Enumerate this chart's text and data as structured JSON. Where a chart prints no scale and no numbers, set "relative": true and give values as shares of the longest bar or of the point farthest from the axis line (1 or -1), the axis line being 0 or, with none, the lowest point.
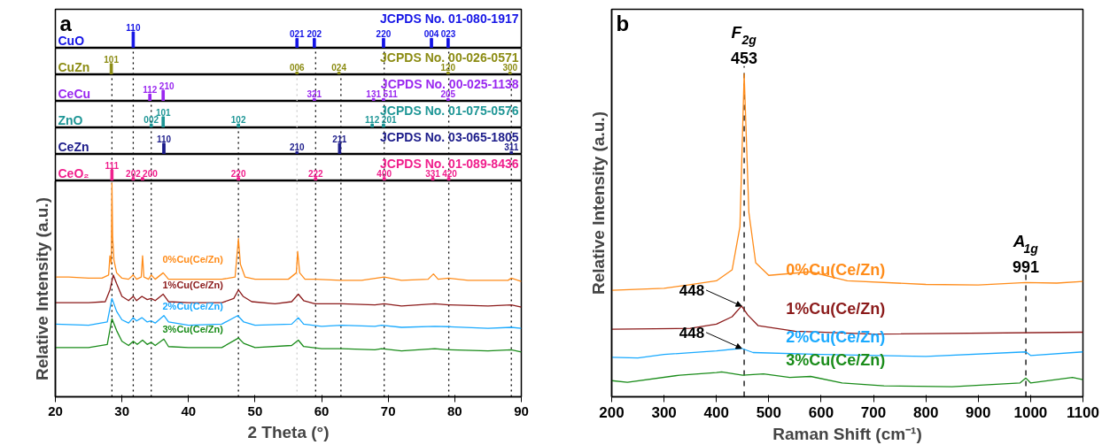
{
  "chart_data": [
    {
      "type": "bar",
      "title": "a",
      "relative": true,
      "xlim": [
        20,
        90
      ],
      "tick_labels": false,
      "series": [
        {
          "name": "CuO",
          "color": "#1414e6",
          "x": [
            31.7,
            56.3,
            58.9,
            69.3,
            76.5,
            79.0
          ],
          "values": [
            1,
            0.6,
            0.6,
            0.6,
            0.6,
            0.6
          ]
        }
      ],
      "annotations": [
        "JCPDS No. 01-080-1917",
        {
          "text": "110",
          "x": 31.7,
          "y": 1
        },
        {
          "text": "021",
          "x": 56.3,
          "y": 0.6
        },
        {
          "text": "202",
          "x": 58.9,
          "y": 0.6
        },
        {
          "text": "220",
          "x": 69.3,
          "y": 0.6
        },
        {
          "text": "004",
          "x": 76.5,
          "y": 0.6
        },
        {
          "text": "023",
          "x": 79.0,
          "y": 0.6
        }
      ]
    },
    {
      "type": "bar",
      "relative": true,
      "xlim": [
        20,
        90
      ],
      "tick_labels": false,
      "series": [
        {
          "name": "CuZn",
          "color": "#8c8c14",
          "x": [
            28.4,
            56.3,
            62.6,
            79.0,
            88.3
          ],
          "values": [
            1,
            0.25,
            0.25,
            0.25,
            0.25
          ]
        }
      ],
      "ref_lines": [
        {
          "axis": "x",
          "value": 31.7,
          "color": "#000000",
          "line_style": "dotted"
        },
        {
          "axis": "x",
          "value": 59.1,
          "color": "#000000",
          "line_style": "dotted"
        },
        {
          "axis": "x",
          "value": 69.4,
          "color": "#000000",
          "line_style": "dotted"
        },
        {
          "axis": "x",
          "value": 79.1,
          "color": "#000000",
          "line_style": "dotted"
        }
      ],
      "annotations": [
        "JCPDS No. 00-026-0571",
        {
          "text": "101",
          "x": 28.4,
          "y": 1
        },
        {
          "text": "006",
          "x": 56.3,
          "y": 0.25
        },
        {
          "text": "024",
          "x": 62.6,
          "y": 0.25
        },
        {
          "text": "120",
          "x": 79.0,
          "y": 0.25
        },
        {
          "text": "300",
          "x": 88.3,
          "y": 0.25
        }
      ]
    },
    {
      "type": "bar",
      "relative": true,
      "xlim": [
        20,
        90
      ],
      "tick_labels": false,
      "series": [
        {
          "name": "CeCu",
          "color": "#9a28f0",
          "x": [
            34.2,
            36.2,
            58.9,
            67.8,
            69.3,
            79.0
          ],
          "values": [
            0.65,
            1,
            0.25,
            0.25,
            0.25,
            0.25
          ]
        }
      ],
      "ref_lines": [
        {
          "axis": "x",
          "value": 28.5,
          "color": "#000000",
          "line_style": "dotted"
        },
        {
          "axis": "x",
          "value": 31.7,
          "color": "#000000",
          "line_style": "dotted"
        },
        {
          "axis": "x",
          "value": 56.3,
          "color": "#cccccc",
          "line_style": "dotted"
        },
        {
          "axis": "x",
          "value": 59.1,
          "color": "#000000",
          "line_style": "dotted"
        },
        {
          "axis": "x",
          "value": 62.9,
          "color": "#000000",
          "line_style": "dotted"
        },
        {
          "axis": "x",
          "value": 69.4,
          "color": "#000000",
          "line_style": "dotted"
        },
        {
          "axis": "x",
          "value": 79.1,
          "color": "#000000",
          "line_style": "dotted"
        },
        {
          "axis": "x",
          "value": 88.5,
          "color": "#000000",
          "line_style": "dotted"
        }
      ],
      "annotations": [
        "JCPDS No. 00-025-1138",
        {
          "text": "112",
          "x": 34.2,
          "y": 0.65
        },
        {
          "text": "210",
          "x": 36.2,
          "y": 1
        },
        {
          "text": "321",
          "x": 58.9,
          "y": 0.25
        },
        {
          "text": "131",
          "x": 67.8,
          "y": 0.25
        },
        {
          "text": "511",
          "x": 69.3,
          "y": 0.25
        },
        {
          "text": "205",
          "x": 79.0,
          "y": 0.25
        }
      ]
    },
    {
      "type": "bar",
      "relative": true,
      "xlim": [
        20,
        90
      ],
      "tick_labels": false,
      "series": [
        {
          "name": "ZnO",
          "color": "#1e9696",
          "x": [
            34.4,
            36.2,
            47.5,
            67.6,
            69.3
          ],
          "values": [
            0.35,
            1,
            0.35,
            0.35,
            0.35
          ]
        }
      ],
      "ref_lines": [
        {
          "axis": "x",
          "value": 28.5,
          "color": "#000000",
          "line_style": "dotted"
        },
        {
          "axis": "x",
          "value": 31.7,
          "color": "#000000",
          "line_style": "dotted"
        },
        {
          "axis": "x",
          "value": 34.4,
          "color": "#000000",
          "line_style": "dotted"
        },
        {
          "axis": "x",
          "value": 56.3,
          "color": "#cccccc",
          "line_style": "dotted"
        },
        {
          "axis": "x",
          "value": 59.1,
          "color": "#000000",
          "line_style": "dotted"
        },
        {
          "axis": "x",
          "value": 62.9,
          "color": "#000000",
          "line_style": "dotted"
        },
        {
          "axis": "x",
          "value": 69.4,
          "color": "#000000",
          "line_style": "dotted"
        },
        {
          "axis": "x",
          "value": 79.1,
          "color": "#000000",
          "line_style": "dotted"
        },
        {
          "axis": "x",
          "value": 88.5,
          "color": "#000000",
          "line_style": "dotted"
        }
      ],
      "annotations": [
        "JCPDS No. 01-075-0576",
        {
          "text": "002",
          "x": 34.4,
          "y": 0.35
        },
        {
          "text": "101",
          "x": 36.2,
          "y": 1
        },
        {
          "text": "102",
          "x": 47.5,
          "y": 0.35
        },
        {
          "text": "112",
          "x": 67.6,
          "y": 0.35
        },
        {
          "text": "201",
          "x": 69.3,
          "y": 0.35
        }
      ]
    },
    {
      "type": "bar",
      "relative": true,
      "xlim": [
        20,
        90
      ],
      "tick_labels": false,
      "series": [
        {
          "name": "CeZn",
          "color": "#1c1c8a",
          "x": [
            36.3,
            56.3,
            62.7,
            88.5
          ],
          "values": [
            1,
            0.25,
            1,
            0.25
          ]
        }
      ],
      "ref_lines": [
        {
          "axis": "x",
          "value": 28.5,
          "color": "#000000",
          "line_style": "dotted"
        },
        {
          "axis": "x",
          "value": 31.7,
          "color": "#000000",
          "line_style": "dotted"
        },
        {
          "axis": "x",
          "value": 34.4,
          "color": "#000000",
          "line_style": "dotted"
        },
        {
          "axis": "x",
          "value": 47.5,
          "color": "#000000",
          "line_style": "dotted"
        },
        {
          "axis": "x",
          "value": 56.3,
          "color": "#cccccc",
          "line_style": "dotted"
        },
        {
          "axis": "x",
          "value": 59.1,
          "color": "#000000",
          "line_style": "dotted"
        },
        {
          "axis": "x",
          "value": 62.9,
          "color": "#000000",
          "line_style": "dotted"
        },
        {
          "axis": "x",
          "value": 69.4,
          "color": "#000000",
          "line_style": "dotted"
        },
        {
          "axis": "x",
          "value": 79.1,
          "color": "#000000",
          "line_style": "dotted"
        },
        {
          "axis": "x",
          "value": 88.5,
          "color": "#000000",
          "line_style": "dotted"
        }
      ],
      "annotations": [
        "JCPDS No. 03-065-1805",
        {
          "text": "110",
          "x": 36.3,
          "y": 1
        },
        {
          "text": "210",
          "x": 56.3,
          "y": 0.25
        },
        {
          "text": "211",
          "x": 62.7,
          "y": 1
        },
        {
          "text": "311",
          "x": 88.5,
          "y": 0.25
        }
      ]
    },
    {
      "type": "bar",
      "relative": true,
      "xlim": [
        20,
        90
      ],
      "tick_labels": false,
      "series": [
        {
          "name": "CeO₂",
          "color": "#f01e8c",
          "x": [
            28.5,
            31.7,
            33.1,
            47.5,
            59.1,
            69.4,
            76.7,
            79.1
          ],
          "values": [
            1,
            0.3,
            0.3,
            0.3,
            0.3,
            0.3,
            0.3,
            0.3
          ]
        }
      ],
      "ref_lines": [
        {
          "axis": "x",
          "value": 28.5,
          "color": "#000000",
          "line_style": "dotted"
        },
        {
          "axis": "x",
          "value": 31.7,
          "color": "#000000",
          "line_style": "dotted"
        },
        {
          "axis": "x",
          "value": 34.4,
          "color": "#000000",
          "line_style": "dotted"
        },
        {
          "axis": "x",
          "value": 47.5,
          "color": "#000000",
          "line_style": "dotted"
        },
        {
          "axis": "x",
          "value": 56.3,
          "color": "#cccccc",
          "line_style": "dotted"
        },
        {
          "axis": "x",
          "value": 59.1,
          "color": "#000000",
          "line_style": "dotted"
        },
        {
          "axis": "x",
          "value": 62.9,
          "color": "#000000",
          "line_style": "dotted"
        },
        {
          "axis": "x",
          "value": 69.4,
          "color": "#000000",
          "line_style": "dotted"
        },
        {
          "axis": "x",
          "value": 79.1,
          "color": "#000000",
          "line_style": "dotted"
        },
        {
          "axis": "x",
          "value": 88.5,
          "color": "#000000",
          "line_style": "dotted"
        }
      ],
      "annotations": [
        "JCPDS No. 01-089-8436",
        {
          "text": "111",
          "x": 28.5,
          "y": 1
        },
        {
          "text": "202",
          "x": 31.7,
          "y": 0.3
        },
        {
          "text": "200",
          "x": 33.1,
          "y": 0.3
        },
        {
          "text": "220",
          "x": 47.5,
          "y": 0.3
        },
        {
          "text": "222",
          "x": 59.1,
          "y": 0.3
        },
        {
          "text": "400",
          "x": 69.4,
          "y": 0.3
        },
        {
          "text": "331",
          "x": 76.7,
          "y": 0.3
        },
        {
          "text": "420",
          "x": 79.1,
          "y": 0.3
        }
      ]
    },
    {
      "type": "line",
      "xlabel": "2 Theta (°)",
      "ylabel": "Relative Intensity (a.u.)",
      "relative": true,
      "xlim": [
        20,
        90
      ],
      "xticks": [
        20,
        30,
        40,
        50,
        60,
        70,
        80,
        90
      ],
      "series": [
        {
          "name": "0%Cu(Ce/Zn)",
          "color": "#ff8c1a",
          "x": [
            20,
            22,
            25,
            27,
            28.0,
            28.2,
            28.4,
            28.5,
            28.6,
            28.8,
            29.2,
            30,
            31,
            31.7,
            32.2,
            32.9,
            33.1,
            33.3,
            34,
            34.4,
            35,
            36.2,
            37,
            40,
            45,
            47,
            47.5,
            47.8,
            48.5,
            50,
            55,
            56.2,
            56.4,
            56.7,
            57.5,
            59.1,
            62.9,
            66,
            69.4,
            72,
            76,
            76.8,
            77.5,
            79.1,
            82,
            88,
            88.5,
            90
          ],
          "values": [
            0.56,
            0.56,
            0.555,
            0.555,
            0.57,
            0.66,
            0.62,
            1,
            0.75,
            0.64,
            0.58,
            0.555,
            0.55,
            0.57,
            0.55,
            0.56,
            0.66,
            0.56,
            0.55,
            0.57,
            0.55,
            0.58,
            0.55,
            0.55,
            0.55,
            0.56,
            0.74,
            0.62,
            0.56,
            0.55,
            0.55,
            0.58,
            0.68,
            0.58,
            0.55,
            0.55,
            0.545,
            0.545,
            0.56,
            0.545,
            0.55,
            0.575,
            0.55,
            0.555,
            0.545,
            0.545,
            0.555,
            0.54
          ]
        },
        {
          "name": "1%Cu(Ce/Zn)",
          "color": "#8b1a1a",
          "x": [
            20,
            25,
            27.5,
            28.2,
            28.7,
            29.2,
            30,
            31,
            31.7,
            32.2,
            33.0,
            33.8,
            34.4,
            35,
            36.2,
            37,
            40,
            45,
            46.8,
            47.5,
            48.2,
            49.5,
            53,
            55.5,
            56.5,
            57.3,
            59,
            63,
            68,
            69.4,
            72,
            77,
            79.1,
            85,
            88.5,
            90
          ],
          "values": [
            0.44,
            0.44,
            0.445,
            0.5,
            0.57,
            0.53,
            0.47,
            0.45,
            0.47,
            0.45,
            0.47,
            0.455,
            0.46,
            0.45,
            0.48,
            0.445,
            0.44,
            0.44,
            0.46,
            0.5,
            0.47,
            0.445,
            0.435,
            0.445,
            0.48,
            0.45,
            0.435,
            0.435,
            0.43,
            0.435,
            0.425,
            0.435,
            0.43,
            0.425,
            0.43,
            0.42
          ]
        },
        {
          "name": "2%Cu(Ce/Zn)",
          "color": "#1aaaff",
          "x": [
            20,
            25,
            27.8,
            28.5,
            29.2,
            30,
            31,
            31.7,
            32.2,
            33,
            33.8,
            34.4,
            35,
            36.3,
            37,
            40,
            45,
            47.4,
            48.3,
            50,
            55.5,
            56.5,
            57.3,
            60,
            63,
            68,
            69,
            72,
            77,
            79,
            85,
            88.5,
            90
          ],
          "values": [
            0.34,
            0.335,
            0.35,
            0.46,
            0.4,
            0.36,
            0.345,
            0.37,
            0.355,
            0.37,
            0.35,
            0.355,
            0.345,
            0.38,
            0.35,
            0.335,
            0.34,
            0.38,
            0.35,
            0.335,
            0.34,
            0.37,
            0.34,
            0.33,
            0.335,
            0.33,
            0.335,
            0.325,
            0.33,
            0.328,
            0.32,
            0.325,
            0.32
          ]
        },
        {
          "name": "3%Cu(Ce/Zn)",
          "color": "#1a8c1a",
          "x": [
            20,
            25,
            27.8,
            28.5,
            29.2,
            30,
            31,
            31.7,
            32.3,
            33.1,
            33.8,
            34.4,
            35,
            36.3,
            37,
            40,
            45,
            47.5,
            48.3,
            50,
            55.5,
            56.5,
            57.3,
            60,
            63,
            68,
            69,
            72,
            77,
            79,
            85,
            88.5,
            90
          ],
          "values": [
            0.23,
            0.23,
            0.245,
            0.365,
            0.31,
            0.26,
            0.24,
            0.26,
            0.245,
            0.265,
            0.245,
            0.255,
            0.24,
            0.27,
            0.235,
            0.23,
            0.23,
            0.275,
            0.25,
            0.23,
            0.24,
            0.265,
            0.235,
            0.225,
            0.225,
            0.22,
            0.225,
            0.215,
            0.225,
            0.22,
            0.215,
            0.22,
            0.21
          ]
        }
      ],
      "ref_lines": [
        {
          "axis": "x",
          "value": 28.5,
          "color": "#000000",
          "line_style": "dotted"
        },
        {
          "axis": "x",
          "value": 31.7,
          "color": "#000000",
          "line_style": "dotted"
        },
        {
          "axis": "x",
          "value": 34.4,
          "color": "#000000",
          "line_style": "dotted"
        },
        {
          "axis": "x",
          "value": 47.5,
          "color": "#000000",
          "line_style": "dotted"
        },
        {
          "axis": "x",
          "value": 56.3,
          "color": "#cccccc",
          "line_style": "dotted"
        },
        {
          "axis": "x",
          "value": 59.1,
          "color": "#000000",
          "line_style": "dotted"
        },
        {
          "axis": "x",
          "value": 62.9,
          "color": "#000000",
          "line_style": "dotted"
        },
        {
          "axis": "x",
          "value": 69.4,
          "color": "#000000",
          "line_style": "dotted"
        },
        {
          "axis": "x",
          "value": 79.1,
          "color": "#000000",
          "line_style": "dotted"
        },
        {
          "axis": "x",
          "value": 88.5,
          "color": "#000000",
          "line_style": "dotted"
        }
      ]
    },
    {
      "type": "line",
      "title": "b",
      "xlabel": "Raman Shift (cm⁻¹)",
      "ylabel": "Relative Intensity (a.u.)",
      "relative": true,
      "xlim": [
        200,
        1100
      ],
      "xticks": [
        200,
        300,
        400,
        500,
        600,
        700,
        800,
        900,
        1000,
        1100
      ],
      "series": [
        {
          "name": "0%Cu(Ce/Zn)",
          "color": "#ff8c1a",
          "x": [
            200,
            300,
            340,
            400,
            430,
            445,
            453,
            462,
            475,
            500,
            580,
            650,
            800,
            900,
            991,
            1050,
            1100
          ],
          "values": [
            0.33,
            0.336,
            0.345,
            0.359,
            0.393,
            0.527,
            1,
            0.571,
            0.415,
            0.376,
            0.387,
            0.359,
            0.348,
            0.346,
            0.354,
            0.352,
            0.357
          ]
        },
        {
          "name": "1%Cu(Ce/Zn)",
          "color": "#8b1a1a",
          "x": [
            200,
            350,
            400,
            430,
            448,
            460,
            480,
            550,
            700,
            1100
          ],
          "values": [
            0.209,
            0.212,
            0.225,
            0.248,
            0.281,
            0.253,
            0.22,
            0.203,
            0.194,
            0.2
          ]
        },
        {
          "name": "2%Cu(Ce/Zn)",
          "color": "#1aaaff",
          "x": [
            200,
            250,
            300,
            400,
            448,
            470,
            600,
            800,
            991,
            1000,
            1100
          ],
          "values": [
            0.122,
            0.12,
            0.131,
            0.142,
            0.15,
            0.137,
            0.131,
            0.125,
            0.139,
            0.128,
            0.139
          ]
        },
        {
          "name": "3%Cu(Ce/Zn)",
          "color": "#1a8c1a",
          "x": [
            200,
            230,
            330,
            400,
            410,
            450,
            490,
            540,
            580,
            640,
            720,
            850,
            980,
            991,
            1000,
            1080,
            1100
          ],
          "values": [
            0.05,
            0.045,
            0.067,
            0.075,
            0.077,
            0.067,
            0.071,
            0.06,
            0.063,
            0.043,
            0.034,
            0.031,
            0.043,
            0.058,
            0.043,
            0.06,
            0.053
          ]
        }
      ],
      "ref_lines": [
        {
          "axis": "x",
          "value": 453,
          "label": "453",
          "color": "#000000",
          "line_style": "dashed"
        },
        {
          "axis": "x",
          "value": 991,
          "label": "991",
          "color": "#000000",
          "line_style": "dashed"
        }
      ],
      "annotations": [
        "F$_{2g}$",
        "A$_{1g}$",
        {
          "text": "448",
          "x": 448,
          "y": 0.281
        },
        {
          "text": "448",
          "x": 448,
          "y": 0.15
        }
      ]
    }
  ]
}
